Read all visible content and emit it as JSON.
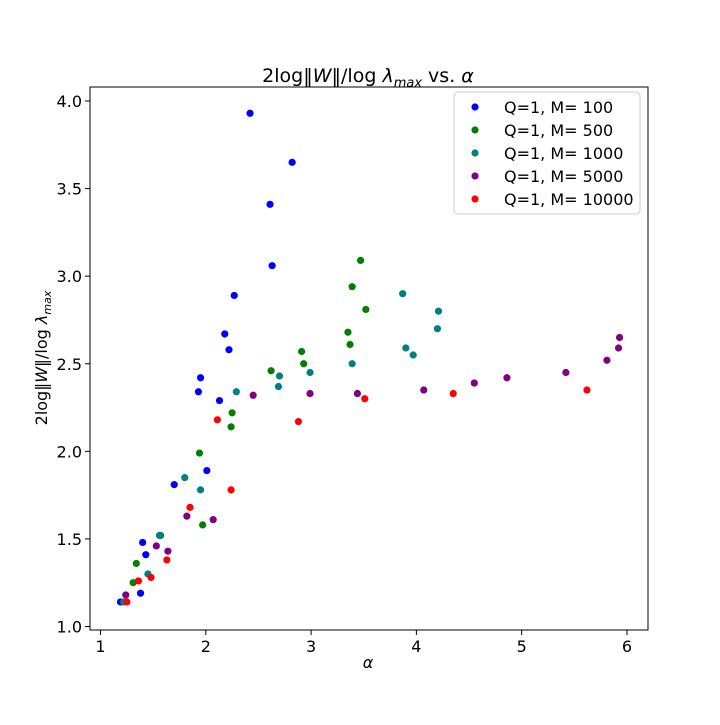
{
  "chart_data": {
    "type": "scatter",
    "title": "2log‖W‖/log λ_max vs. α",
    "xlabel": "α",
    "ylabel": "2log‖W‖/log λ_max",
    "xlim": [
      0.9,
      6.2
    ],
    "ylim": [
      0.98,
      4.08
    ],
    "xticks": [
      "1",
      "2",
      "3",
      "4",
      "5",
      "6"
    ],
    "yticks": [
      "1.0",
      "1.5",
      "2.0",
      "2.5",
      "3.0",
      "3.5",
      "4.0"
    ],
    "grid": false,
    "legend_position": "top-right",
    "series": [
      {
        "name": "Q=1, M= 100",
        "color": "#0000ff",
        "x": [
          1.19,
          1.38,
          1.4,
          1.43,
          1.7,
          1.93,
          1.95,
          2.01,
          2.13,
          2.18,
          2.22,
          2.27,
          2.42,
          2.61,
          2.63,
          2.82
        ],
        "y": [
          1.14,
          1.19,
          1.48,
          1.41,
          1.81,
          2.34,
          2.42,
          1.89,
          2.29,
          2.67,
          2.58,
          2.89,
          3.93,
          3.41,
          3.06,
          3.65
        ]
      },
      {
        "name": "Q=1, M= 500",
        "color": "#008000",
        "x": [
          1.31,
          1.34,
          1.57,
          1.94,
          1.97,
          2.24,
          2.25,
          2.62,
          2.91,
          2.93,
          3.35,
          3.37,
          3.39,
          3.47,
          3.52
        ],
        "y": [
          1.25,
          1.36,
          1.52,
          1.99,
          1.58,
          2.14,
          2.22,
          2.46,
          2.57,
          2.5,
          2.68,
          2.61,
          2.94,
          3.09,
          2.81
        ]
      },
      {
        "name": "Q=1, M= 1000",
        "color": "#008080",
        "x": [
          1.22,
          1.45,
          1.56,
          1.8,
          1.95,
          2.29,
          2.69,
          2.7,
          2.99,
          3.39,
          3.87,
          3.9,
          3.97,
          4.2,
          4.21
        ],
        "y": [
          1.14,
          1.3,
          1.52,
          1.85,
          1.78,
          2.34,
          2.37,
          2.43,
          2.45,
          2.5,
          2.9,
          2.59,
          2.55,
          2.7,
          2.8
        ]
      },
      {
        "name": "Q=1, M= 5000",
        "color": "#800080",
        "x": [
          1.24,
          1.53,
          1.64,
          1.82,
          2.07,
          2.45,
          2.99,
          3.44,
          4.07,
          4.55,
          4.86,
          5.42,
          5.81,
          5.92,
          5.93
        ],
        "y": [
          1.18,
          1.46,
          1.43,
          1.63,
          1.61,
          2.32,
          2.33,
          2.33,
          2.35,
          2.39,
          2.42,
          2.45,
          2.52,
          2.59,
          2.65
        ]
      },
      {
        "name": "Q=1, M= 10000",
        "color": "#ff0000",
        "x": [
          1.25,
          1.36,
          1.48,
          1.63,
          1.85,
          2.11,
          2.24,
          2.88,
          3.51,
          4.35,
          5.62
        ],
        "y": [
          1.14,
          1.26,
          1.28,
          1.38,
          1.68,
          2.18,
          1.78,
          2.17,
          2.3,
          2.33,
          2.35
        ]
      }
    ]
  }
}
